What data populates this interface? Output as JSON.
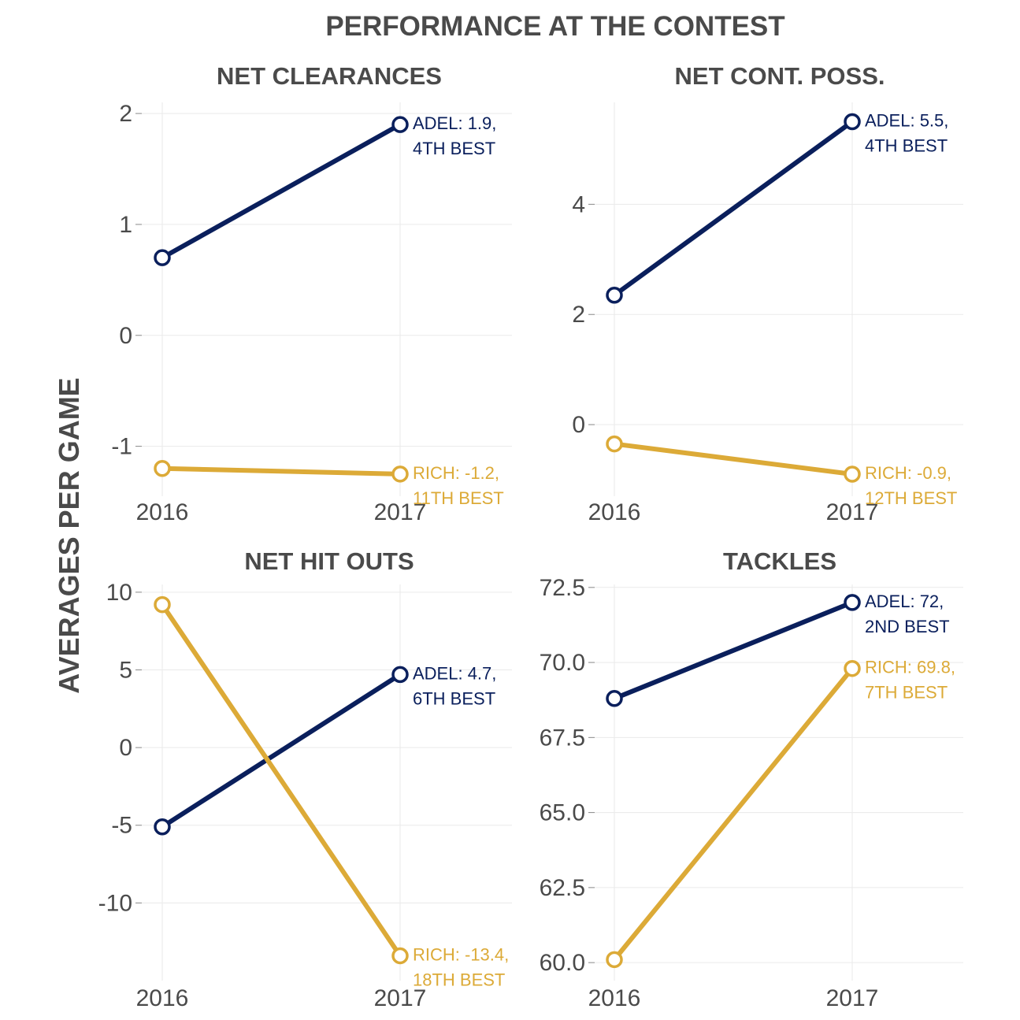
{
  "title": "PERFORMANCE AT THE CONTEST",
  "ylabel": "AVERAGES PER GAME",
  "colors": {
    "adel": "#0a1f5c",
    "rich": "#dcaa37",
    "grid": "#eaeaea",
    "text": "#4a4a4a"
  },
  "chart_data": [
    {
      "type": "line",
      "title": "NET CLEARANCES",
      "x": [
        "2016",
        "2017"
      ],
      "ylim": [
        -1.45,
        2.1
      ],
      "yticks": [
        2,
        1,
        0,
        -1
      ],
      "ytick_labels": [
        "2",
        "1",
        "0",
        "-1"
      ],
      "series": [
        {
          "name": "ADEL",
          "color": "#0a1f5c",
          "values": [
            0.7,
            1.9
          ],
          "annotation": [
            "ADEL: 1.9,",
            "4TH BEST"
          ]
        },
        {
          "name": "RICH",
          "color": "#dcaa37",
          "values": [
            -1.2,
            -1.25
          ],
          "annotation": [
            "RICH: -1.2,",
            "11TH BEST"
          ]
        }
      ]
    },
    {
      "type": "line",
      "title": "NET CONT. POSS.",
      "x": [
        "2016",
        "2017"
      ],
      "ylim": [
        -1.3,
        5.85
      ],
      "yticks": [
        4,
        2,
        0
      ],
      "ytick_labels": [
        "4",
        "2",
        "0"
      ],
      "series": [
        {
          "name": "ADEL",
          "color": "#0a1f5c",
          "values": [
            2.35,
            5.5
          ],
          "annotation": [
            "ADEL: 5.5,",
            "4TH BEST"
          ]
        },
        {
          "name": "RICH",
          "color": "#dcaa37",
          "values": [
            -0.35,
            -0.9
          ],
          "annotation": [
            "RICH: -0.9,",
            "12TH BEST"
          ]
        }
      ]
    },
    {
      "type": "line",
      "title": "NET HIT OUTS",
      "x": [
        "2016",
        "2017"
      ],
      "ylim": [
        -15.0,
        10.5
      ],
      "yticks": [
        10,
        5,
        0,
        -5,
        -10
      ],
      "ytick_labels": [
        "10",
        "5",
        "0",
        "-5",
        "-10"
      ],
      "series": [
        {
          "name": "ADEL",
          "color": "#0a1f5c",
          "values": [
            -5.1,
            4.7
          ],
          "annotation": [
            "ADEL: 4.7,",
            "6TH BEST"
          ]
        },
        {
          "name": "RICH",
          "color": "#dcaa37",
          "values": [
            9.2,
            -13.4
          ],
          "annotation": [
            "RICH: -13.4,",
            "18TH BEST"
          ]
        }
      ]
    },
    {
      "type": "line",
      "title": "TACKLES",
      "x": [
        "2016",
        "2017"
      ],
      "ylim": [
        59.4,
        72.6
      ],
      "yticks": [
        72.5,
        70.0,
        67.5,
        65.0,
        62.5,
        60.0
      ],
      "ytick_labels": [
        "72.5",
        "70.0",
        "67.5",
        "65.0",
        "62.5",
        "60.0"
      ],
      "series": [
        {
          "name": "ADEL",
          "color": "#0a1f5c",
          "values": [
            68.8,
            72.0
          ],
          "annotation": [
            "ADEL: 72,",
            "2ND BEST"
          ]
        },
        {
          "name": "RICH",
          "color": "#dcaa37",
          "values": [
            60.1,
            69.8
          ],
          "annotation": [
            "RICH: 69.8,",
            "7TH BEST"
          ]
        }
      ]
    }
  ]
}
